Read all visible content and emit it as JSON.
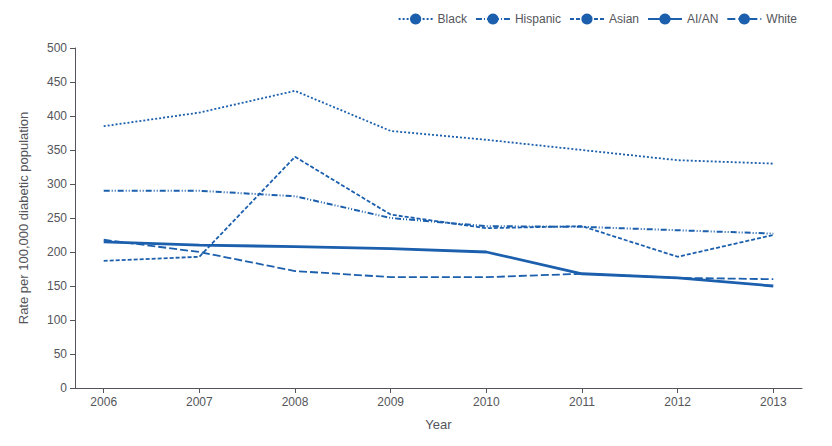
{
  "chart_data": {
    "type": "line",
    "x": [
      2006,
      2007,
      2008,
      2009,
      2010,
      2011,
      2012,
      2013
    ],
    "series": [
      {
        "name": "Black",
        "color": "#1b5fad",
        "line_style": "dotted",
        "values": [
          385,
          405,
          437,
          378,
          365,
          350,
          335,
          330
        ]
      },
      {
        "name": "Hispanic",
        "color": "#1b5fad",
        "line_style": "dashdotdot",
        "values": [
          290,
          290,
          282,
          250,
          238,
          237,
          232,
          227
        ]
      },
      {
        "name": "Asian",
        "color": "#1b5fad",
        "line_style": "dashed",
        "values": [
          187,
          193,
          340,
          255,
          235,
          238,
          193,
          225
        ]
      },
      {
        "name": "AI/AN",
        "color": "#1b5fad",
        "line_style": "solid",
        "values": [
          215,
          210,
          208,
          205,
          200,
          168,
          162,
          150
        ]
      },
      {
        "name": "White",
        "color": "#1b5fad",
        "line_style": "longdashed",
        "values": [
          218,
          200,
          172,
          163,
          163,
          168,
          162,
          160
        ]
      }
    ],
    "xlabel": "Year",
    "ylabel": "Rate per 100,000 diabetic population",
    "xlim": [
      2005.7,
      2013.3
    ],
    "xticks": [
      2006,
      2007,
      2008,
      2009,
      2010,
      2011,
      2012,
      2013
    ],
    "ylim": [
      0,
      500
    ],
    "yticks": [
      0,
      50,
      100,
      150,
      200,
      250,
      300,
      350,
      400,
      450,
      500
    ],
    "grid": false,
    "legend": "upper right"
  }
}
